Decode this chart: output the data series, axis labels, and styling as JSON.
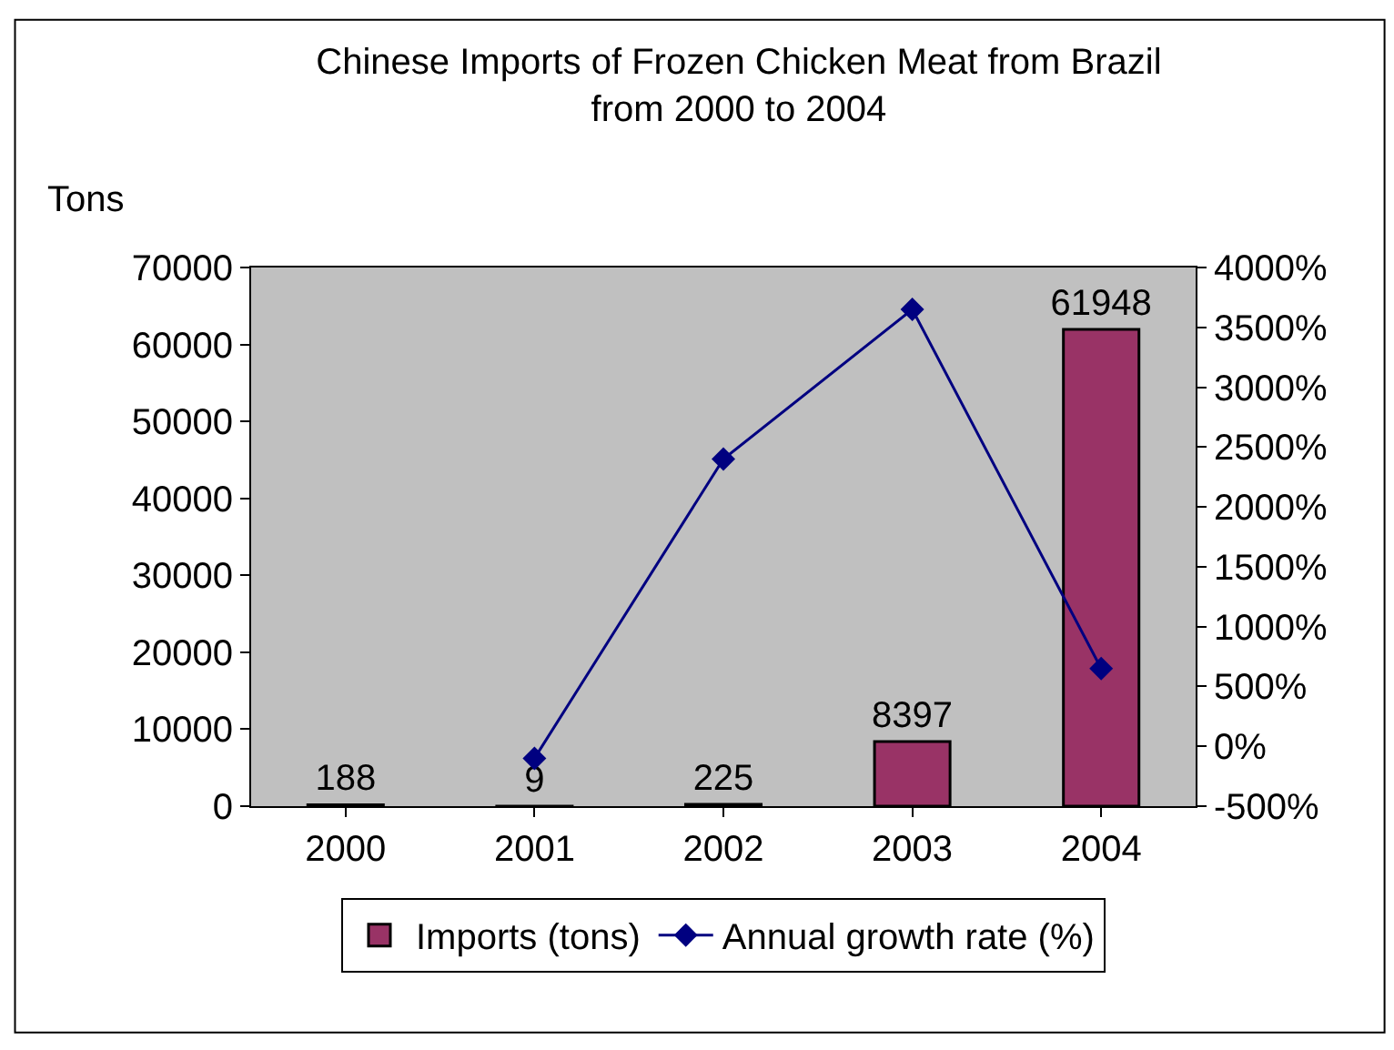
{
  "chart_data": {
    "type": "bar",
    "title": "Chinese Imports of Frozen Chicken Meat from Brazil from 2000 to 2004",
    "ylabel": "Tons",
    "categories": [
      "2000",
      "2001",
      "2002",
      "2003",
      "2004"
    ],
    "series": [
      {
        "name": "Imports (tons)",
        "color": "#993366",
        "values": [
          188,
          9,
          225,
          8397,
          61948
        ],
        "data_labels": true
      },
      {
        "name": "Annual growth rate (%)",
        "type": "line",
        "axis": "y2",
        "color": "#000080",
        "marker": "diamond",
        "values": [
          null,
          -100,
          2400,
          3650,
          650
        ]
      }
    ],
    "ylim": [
      0,
      70000
    ],
    "yticks": [
      0,
      10000,
      20000,
      30000,
      40000,
      50000,
      60000,
      70000
    ],
    "y2lim": [
      -500,
      4000
    ],
    "y2ticks": [
      {
        "value": -500,
        "label": "-500%"
      },
      {
        "value": 0,
        "label": "0%"
      },
      {
        "value": 500,
        "label": "500%"
      },
      {
        "value": 1000,
        "label": "1000%"
      },
      {
        "value": 1500,
        "label": "1500%"
      },
      {
        "value": 2000,
        "label": "2000%"
      },
      {
        "value": 2500,
        "label": "2500%"
      },
      {
        "value": 3000,
        "label": "3000%"
      },
      {
        "value": 3500,
        "label": "3500%"
      },
      {
        "value": 4000,
        "label": "4000%"
      }
    ],
    "grid": false,
    "legend": "bottom"
  }
}
